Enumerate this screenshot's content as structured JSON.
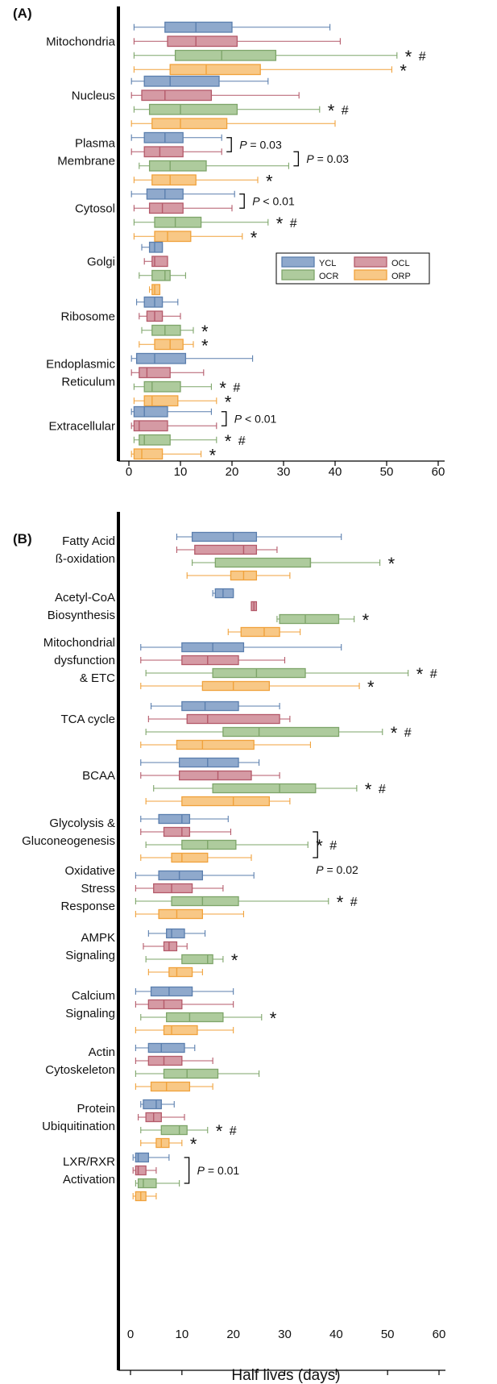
{
  "colors": {
    "YCL": "#5b7fae",
    "OCL": "#b45a6a",
    "OCR": "#7ea56a",
    "ORP": "#f0a23c"
  },
  "legend": [
    "YCL",
    "OCL",
    "OCR",
    "ORP"
  ],
  "xlabel": "Half lives (days)",
  "chart_data": [
    {
      "type": "box",
      "panel_label": "(A)",
      "xlim": [
        0,
        60
      ],
      "xticks": [
        0,
        10,
        20,
        30,
        40,
        50,
        60
      ],
      "series_order": [
        "YCL",
        "OCL",
        "OCR",
        "ORP"
      ],
      "categories": [
        {
          "lines": [
            "Mitochondria"
          ],
          "boxes": [
            [
              1,
              7,
              13,
              20,
              39
            ],
            [
              1,
              7.5,
              13,
              21,
              41
            ],
            [
              1,
              9,
              18,
              28.5,
              52
            ],
            [
              1,
              8,
              15,
              25.5,
              51
            ]
          ],
          "marks": [
            "",
            "",
            "*#",
            "*"
          ]
        },
        {
          "lines": [
            "Nucleus"
          ],
          "boxes": [
            [
              0.5,
              3,
              8,
              17.5,
              27
            ],
            [
              0.5,
              2.5,
              7,
              16,
              33
            ],
            [
              1,
              4,
              10,
              21,
              37
            ],
            [
              0.5,
              4.5,
              10,
              19,
              40
            ]
          ],
          "marks": [
            "",
            "",
            "*#",
            ""
          ]
        },
        {
          "lines": [
            "Plasma",
            "Membrane"
          ],
          "boxes": [
            [
              0.5,
              3,
              7,
              10.5,
              18
            ],
            [
              0.5,
              3,
              6,
              10.5,
              18
            ],
            [
              2,
              4,
              8,
              15,
              31
            ],
            [
              1,
              4.5,
              8,
              13,
              25
            ]
          ],
          "marks": [
            "",
            "",
            "",
            "*"
          ]
        },
        {
          "lines": [
            "Cytosol"
          ],
          "boxes": [
            [
              0.5,
              3.5,
              7,
              10.5,
              20.5
            ],
            [
              1,
              4,
              6.5,
              10.5,
              20
            ],
            [
              1,
              5,
              9,
              14,
              27
            ],
            [
              1,
              5,
              7.5,
              12,
              22
            ]
          ],
          "marks": [
            "",
            "",
            "*#",
            "*"
          ]
        },
        {
          "lines": [
            "Golgi"
          ],
          "boxes": [
            [
              2.5,
              4,
              5,
              6.5,
              6.5
            ],
            [
              3,
              4.5,
              5,
              7.5,
              7.5
            ],
            [
              2,
              4.5,
              7,
              8,
              11
            ],
            [
              4,
              4.5,
              5,
              6,
              6
            ]
          ],
          "marks": [
            "",
            "",
            "",
            ""
          ]
        },
        {
          "lines": [
            "Ribosome"
          ],
          "boxes": [
            [
              1.5,
              3,
              5,
              6.5,
              9.5
            ],
            [
              2,
              3.5,
              5,
              6.5,
              10
            ],
            [
              2.5,
              4.5,
              7,
              10,
              12.5
            ],
            [
              2,
              5,
              8,
              10.5,
              12.5
            ]
          ],
          "marks": [
            "",
            "",
            "*",
            "*"
          ]
        },
        {
          "lines": [
            "Endoplasmic",
            "Reticulum"
          ],
          "boxes": [
            [
              0.5,
              1.5,
              5,
              11,
              24
            ],
            [
              0.5,
              2,
              3.5,
              8,
              14.5
            ],
            [
              1,
              3,
              4.5,
              10,
              16
            ],
            [
              1,
              3,
              4.5,
              9.5,
              17
            ]
          ],
          "marks": [
            "",
            "",
            "*#",
            "*"
          ]
        },
        {
          "lines": [
            "Extracellular"
          ],
          "boxes": [
            [
              0.5,
              1,
              3,
              7.5,
              16
            ],
            [
              0.5,
              1,
              2,
              7.5,
              17
            ],
            [
              1,
              2,
              3,
              8,
              17
            ],
            [
              0.5,
              1,
              2.5,
              6.5,
              14
            ]
          ],
          "marks": [
            "",
            "",
            "*#",
            "*"
          ]
        }
      ],
      "brackets": [
        {
          "from_category": 2,
          "from_series": 0,
          "to_category": 2,
          "to_series": 1,
          "label": "P = 0.03"
        },
        {
          "from_category": 2,
          "from_series": 1,
          "to_category": 2,
          "to_series": 2,
          "label": "P = 0.03"
        },
        {
          "from_category": 3,
          "from_series": 0,
          "to_category": 3,
          "to_series": 1,
          "label": "P < 0.01"
        },
        {
          "from_category": 7,
          "from_series": 0,
          "to_category": 7,
          "to_series": 1,
          "label": "P < 0.01"
        }
      ]
    },
    {
      "type": "box",
      "panel_label": "(B)",
      "xlim": [
        0,
        60
      ],
      "xticks": [
        0,
        10,
        20,
        30,
        40,
        50,
        60
      ],
      "series_order": [
        "YCL",
        "OCL",
        "OCR",
        "ORP"
      ],
      "categories": [
        {
          "lines": [
            "Fatty Acid",
            "ß-oxidation"
          ],
          "boxes": [
            [
              9,
              12,
              20,
              24.5,
              41
            ],
            [
              9,
              12.5,
              22,
              24.5,
              28.5
            ],
            [
              12,
              16.5,
              35,
              35,
              48.5
            ],
            [
              11,
              19.5,
              22,
              24.5,
              31
            ]
          ],
          "marks": [
            "",
            "",
            "*",
            ""
          ]
        },
        {
          "lines": [
            "Acetyl-CoA",
            "Biosynthesis"
          ],
          "boxes": [
            [
              16,
              16.5,
              18,
              20,
              20
            ],
            [
              23.5,
              23.5,
              24,
              24.5,
              24.5
            ],
            [
              28.5,
              29,
              34,
              40.5,
              43.5
            ],
            [
              19,
              21.5,
              26,
              29,
              33
            ]
          ],
          "marks": [
            "",
            "",
            "*",
            ""
          ]
        },
        {
          "lines": [
            "Mitochondrial",
            "dysfunction",
            "& ETC"
          ],
          "boxes": [
            [
              2,
              10,
              16,
              22,
              41
            ],
            [
              2,
              10,
              15,
              21,
              30
            ],
            [
              3,
              16,
              24.5,
              34,
              54
            ],
            [
              2,
              14,
              20,
              27,
              44.5
            ]
          ],
          "marks": [
            "",
            "",
            "*#",
            "*"
          ]
        },
        {
          "lines": [
            "TCA cycle"
          ],
          "boxes": [
            [
              4,
              10,
              14.5,
              21,
              29
            ],
            [
              3.5,
              11,
              15,
              29,
              31
            ],
            [
              3,
              18,
              25,
              40.5,
              49
            ],
            [
              2,
              9,
              14,
              24,
              35
            ]
          ],
          "marks": [
            "",
            "",
            "*#",
            ""
          ]
        },
        {
          "lines": [
            "BCAA"
          ],
          "boxes": [
            [
              2,
              9.5,
              15,
              21,
              25
            ],
            [
              2,
              9.5,
              17,
              23.5,
              29
            ],
            [
              4.5,
              16,
              29,
              36,
              44
            ],
            [
              3,
              10,
              20,
              27,
              31
            ]
          ],
          "marks": [
            "",
            "",
            "*#",
            ""
          ]
        },
        {
          "lines": [
            "Glycolysis &",
            "Gluconeogenesis"
          ],
          "boxes": [
            [
              2,
              5.5,
              10,
              11.5,
              19
            ],
            [
              2,
              6.5,
              10,
              11.5,
              19.5
            ],
            [
              3,
              10,
              15,
              20.5,
              34.5
            ],
            [
              2,
              8,
              10,
              15,
              23.5
            ]
          ],
          "marks": [
            "",
            "",
            "*#",
            ""
          ]
        },
        {
          "lines": [
            "Oxidative",
            "Stress",
            "Response"
          ],
          "boxes": [
            [
              1,
              5.5,
              9.5,
              14,
              24
            ],
            [
              1,
              4.5,
              8,
              12,
              18
            ],
            [
              1,
              8,
              14,
              21,
              38.5
            ],
            [
              1,
              5.5,
              9,
              14,
              22
            ]
          ],
          "marks": [
            "",
            "",
            "*#",
            ""
          ]
        },
        {
          "lines": [
            "AMPK",
            "Signaling"
          ],
          "boxes": [
            [
              3.5,
              7,
              8,
              10.5,
              14.5
            ],
            [
              2.5,
              6.5,
              7.5,
              9,
              11
            ],
            [
              3,
              10,
              15,
              16,
              18
            ],
            [
              3.5,
              7.5,
              9,
              12,
              14
            ]
          ],
          "marks": [
            "",
            "",
            "*",
            ""
          ]
        },
        {
          "lines": [
            "Calcium",
            "Signaling"
          ],
          "boxes": [
            [
              1,
              4,
              7.5,
              12,
              20
            ],
            [
              1,
              3.5,
              6.5,
              10,
              20
            ],
            [
              2,
              7,
              11.5,
              18,
              25.5
            ],
            [
              1,
              6.5,
              8,
              13,
              20
            ]
          ],
          "marks": [
            "",
            "",
            "*",
            ""
          ]
        },
        {
          "lines": [
            "Actin",
            "Cytoskeleton"
          ],
          "boxes": [
            [
              1,
              3.5,
              6,
              10.5,
              12.5
            ],
            [
              1,
              3.5,
              6.5,
              10,
              16
            ],
            [
              1,
              6.5,
              11,
              17,
              25
            ],
            [
              1,
              4,
              7,
              11.5,
              16
            ]
          ],
          "marks": [
            "",
            "",
            "",
            ""
          ]
        },
        {
          "lines": [
            "Protein",
            "Ubiquitination"
          ],
          "boxes": [
            [
              2,
              2.5,
              5,
              6,
              8.5
            ],
            [
              1.5,
              3,
              4.5,
              6,
              10.5
            ],
            [
              2,
              6,
              9.5,
              11,
              15
            ],
            [
              2,
              5,
              6,
              7.5,
              10
            ]
          ],
          "marks": [
            "",
            "",
            "*#",
            "*"
          ]
        },
        {
          "lines": [
            "LXR/RXR",
            "Activation"
          ],
          "boxes": [
            [
              0.5,
              1,
              1.5,
              3.5,
              7.5
            ],
            [
              0.5,
              1,
              1.5,
              3,
              5
            ],
            [
              1,
              1.5,
              2.5,
              5,
              9.5
            ],
            [
              0.5,
              1,
              2,
              3,
              5
            ]
          ],
          "marks": [
            "",
            "",
            "",
            ""
          ]
        }
      ],
      "brackets": [
        {
          "from_category": 5,
          "from_series": 1,
          "to_category": 5,
          "to_series": 3,
          "label": "P = 0.02"
        },
        {
          "from_category": 11,
          "from_series": 0,
          "to_category": 11,
          "to_series": 2,
          "label": "P = 0.01"
        }
      ]
    }
  ]
}
